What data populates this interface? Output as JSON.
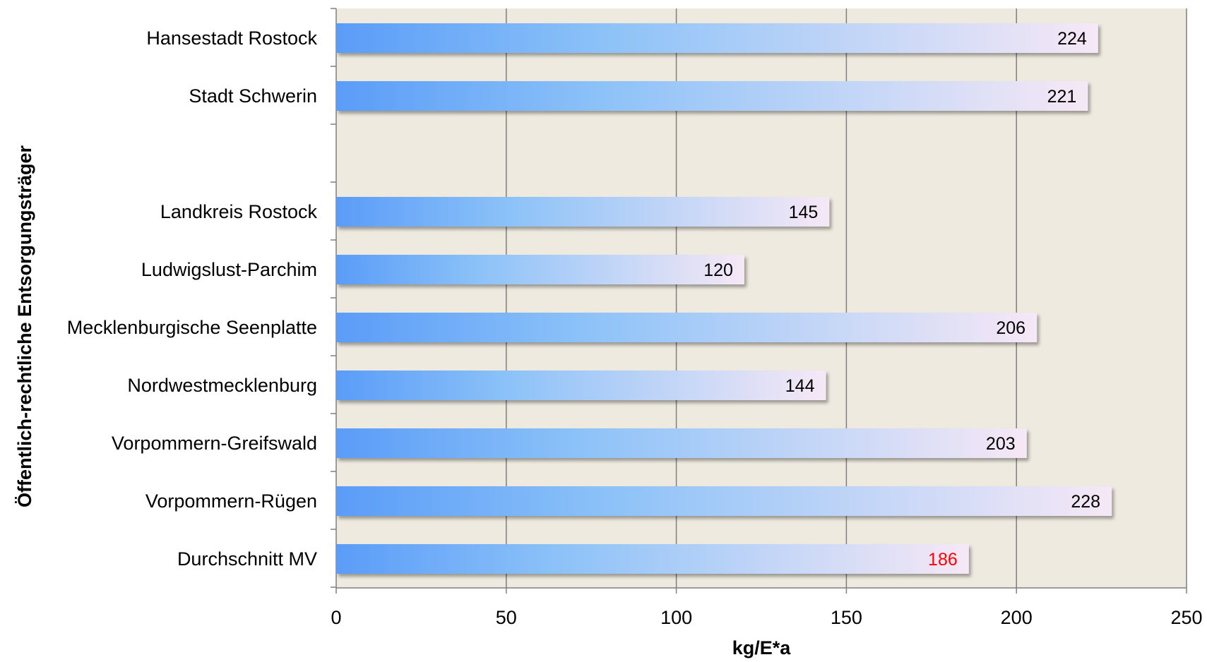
{
  "chart_data": {
    "type": "bar",
    "orientation": "horizontal",
    "title": "",
    "xlabel": "kg/E*a",
    "ylabel": "Öffentlich-rechtliche Entsorgungsträger",
    "xlim": [
      0,
      250
    ],
    "xticks": [
      0,
      50,
      100,
      150,
      200,
      250
    ],
    "grid": true,
    "legend": "none",
    "colors": {
      "plot_background": "#EEEAE0",
      "bar_start": "#5A9CF8",
      "bar_mid": "#8CC2F8",
      "bar_end": "#F6E8F6",
      "gridline": "#7F7F7F",
      "value_label": "#000000",
      "highlight_value_label": "#FF0000"
    },
    "categories": [
      "Hansestadt Rostock",
      "Stadt Schwerin",
      "",
      "Landkreis Rostock",
      "Ludwigslust-Parchim",
      "Mecklenburgische Seenplatte",
      "Nordwestmecklenburg",
      "Vorpommern-Greifswald",
      "Vorpommern-Rügen",
      "Durchschnitt MV"
    ],
    "values": [
      224,
      221,
      null,
      145,
      120,
      206,
      144,
      203,
      228,
      186
    ],
    "value_labels": [
      "224",
      "221",
      "",
      "145",
      "120",
      "206",
      "144",
      "203",
      "228",
      "186"
    ],
    "highlight_category": "Durchschnitt MV"
  }
}
